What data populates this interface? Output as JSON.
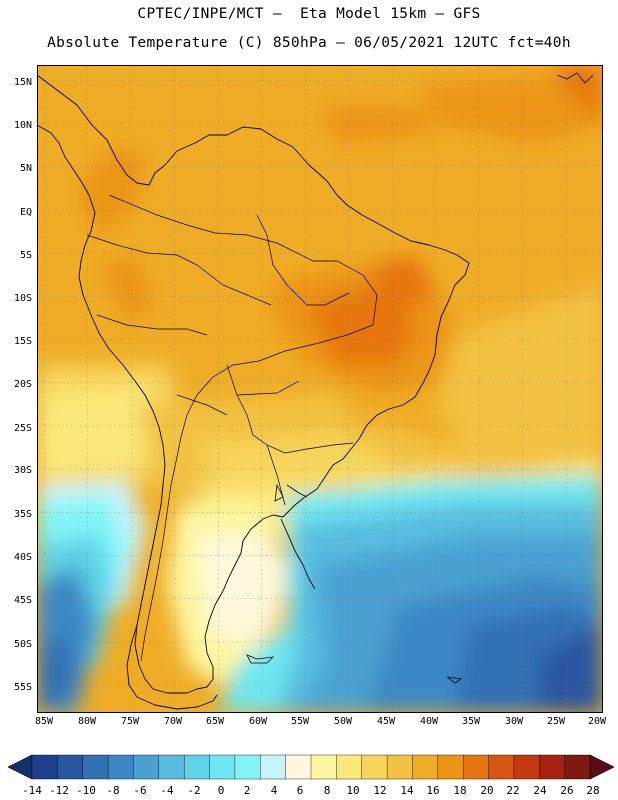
{
  "header": {
    "line1": "CPTEC/INPE/MCT –  Eta Model 15km – GFS",
    "line2": "Absolute Temperature (C) 850hPa – 06/05/2021 12UTC fct=40h"
  },
  "axes": {
    "lat_labels": [
      "15N",
      "10N",
      "5N",
      "EQ",
      "5S",
      "10S",
      "15S",
      "20S",
      "25S",
      "30S",
      "35S",
      "40S",
      "45S",
      "50S",
      "55S"
    ],
    "lon_labels": [
      "85W",
      "80W",
      "75W",
      "70W",
      "65W",
      "60W",
      "55W",
      "50W",
      "45W",
      "40W",
      "35W",
      "30W",
      "25W",
      "20W"
    ]
  },
  "colorbar": {
    "labels": [
      "-14",
      "-12",
      "-10",
      "-8",
      "-6",
      "-4",
      "-2",
      "0",
      "2",
      "4",
      "6",
      "8",
      "10",
      "12",
      "14",
      "16",
      "18",
      "20",
      "22",
      "24",
      "26",
      "28"
    ],
    "colors": [
      "#1f3e8e",
      "#2956a0",
      "#3270b4",
      "#3c88c4",
      "#4aa2d2",
      "#58bde0",
      "#5fd3e8",
      "#70e6f0",
      "#7ff5f7",
      "#c9f3fb",
      "#fff8dc",
      "#fdf7a0",
      "#fbe87a",
      "#f7d55c",
      "#f2c243",
      "#efad27",
      "#ec9515",
      "#e6760f",
      "#d95512",
      "#c33a12",
      "#a6220f",
      "#7e1a10"
    ],
    "under_color": "#14306f",
    "over_color": "#5c0a18"
  }
}
